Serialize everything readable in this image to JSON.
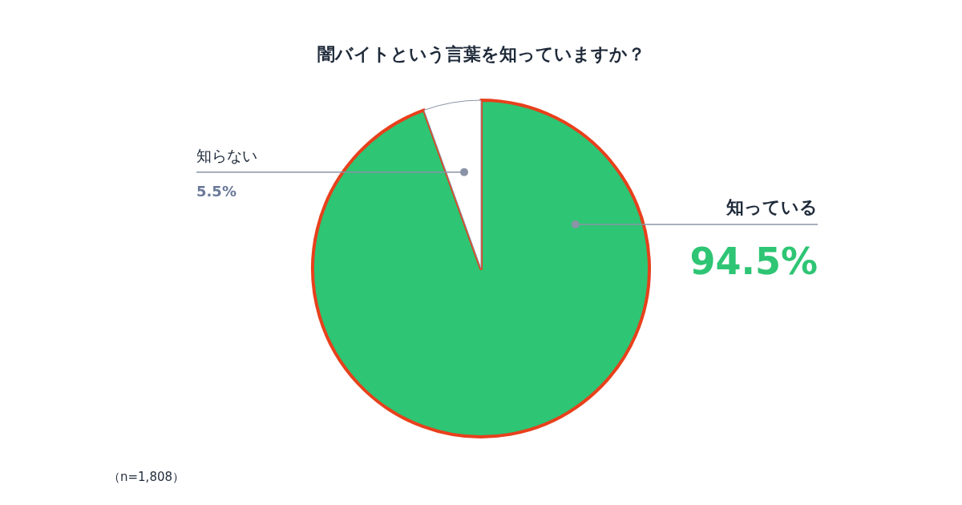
{
  "chart_data": {
    "type": "pie",
    "title": "闇バイトという言葉を知っていますか？",
    "categories": [
      "知っている",
      "知らない"
    ],
    "values": [
      94.5,
      5.5
    ],
    "colors": [
      "#2ec574",
      "#ffffff"
    ],
    "value_labels": [
      "94.5%",
      "5.5%"
    ],
    "annotations": [
      "（n=1,808）"
    ]
  }
}
